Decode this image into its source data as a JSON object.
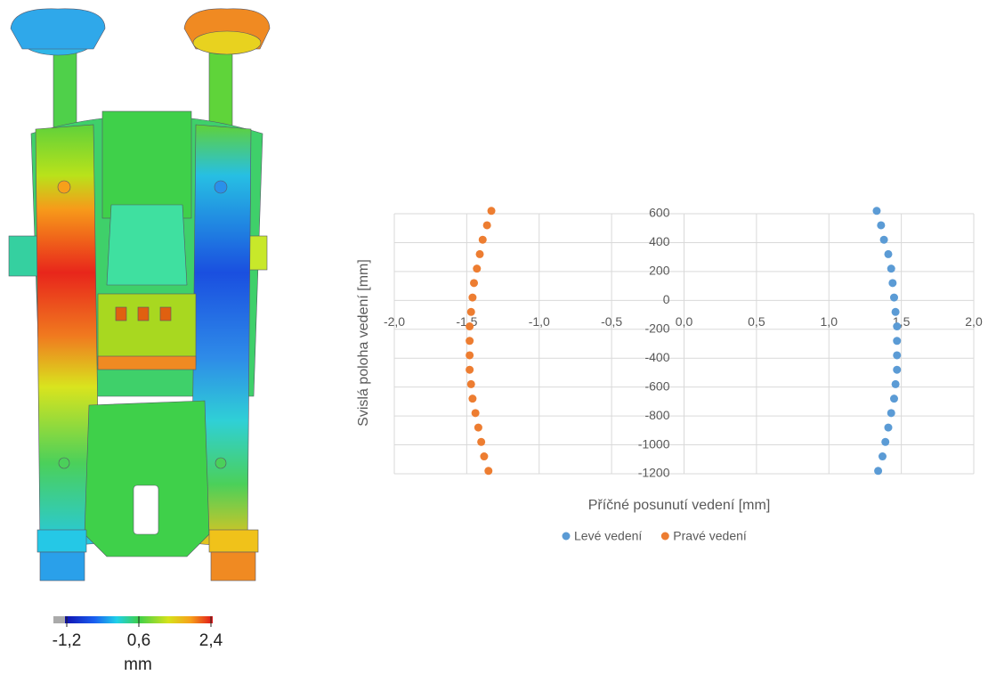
{
  "chart_data": {
    "type": "scatter",
    "x_label": "Příčné posunutí vedení [mm]",
    "y_label": "Svislá poloha vedení [mm]",
    "xlim": [
      -2,
      2
    ],
    "xticks": [
      {
        "value": -2,
        "label": "-2,0"
      },
      {
        "value": -1.5,
        "label": "-1,5"
      },
      {
        "value": -1,
        "label": "-1,0"
      },
      {
        "value": -0.5,
        "label": "-0,5"
      },
      {
        "value": 0,
        "label": "0,0"
      },
      {
        "value": 0.5,
        "label": "0,5"
      },
      {
        "value": 1,
        "label": "1,0"
      },
      {
        "value": 1.5,
        "label": "1,5"
      },
      {
        "value": 2,
        "label": "2,0"
      }
    ],
    "ylim": [
      -1200,
      600
    ],
    "yticks": [
      600,
      400,
      200,
      0,
      -200,
      -400,
      -600,
      -800,
      -1000,
      -1200
    ],
    "grid": true,
    "legend": "bottom",
    "series": [
      {
        "name": "Levé vedení",
        "color": "#5b9bd5",
        "x": [
          1.33,
          1.36,
          1.38,
          1.41,
          1.43,
          1.44,
          1.45,
          1.46,
          1.47,
          1.47,
          1.47,
          1.47,
          1.46,
          1.45,
          1.43,
          1.41,
          1.39,
          1.37,
          1.34
        ],
        "y": [
          620,
          520,
          420,
          320,
          220,
          120,
          20,
          -80,
          -180,
          -280,
          -380,
          -480,
          -580,
          -680,
          -780,
          -880,
          -980,
          -1080,
          -1180
        ]
      },
      {
        "name": "Pravé vedení",
        "color": "#ed7d31",
        "x": [
          -1.33,
          -1.36,
          -1.39,
          -1.41,
          -1.43,
          -1.45,
          -1.46,
          -1.47,
          -1.48,
          -1.48,
          -1.48,
          -1.48,
          -1.47,
          -1.46,
          -1.44,
          -1.42,
          -1.4,
          -1.38,
          -1.35
        ],
        "y": [
          620,
          520,
          420,
          320,
          220,
          120,
          20,
          -80,
          -180,
          -280,
          -380,
          -480,
          -580,
          -680,
          -780,
          -880,
          -980,
          -1080,
          -1180
        ]
      }
    ]
  },
  "colorbar": {
    "ticks": [
      {
        "value": -1.2,
        "label": "-1,2"
      },
      {
        "value": 0.6,
        "label": "0,6"
      },
      {
        "value": 2.4,
        "label": "2,4"
      }
    ],
    "unit": "mm"
  }
}
